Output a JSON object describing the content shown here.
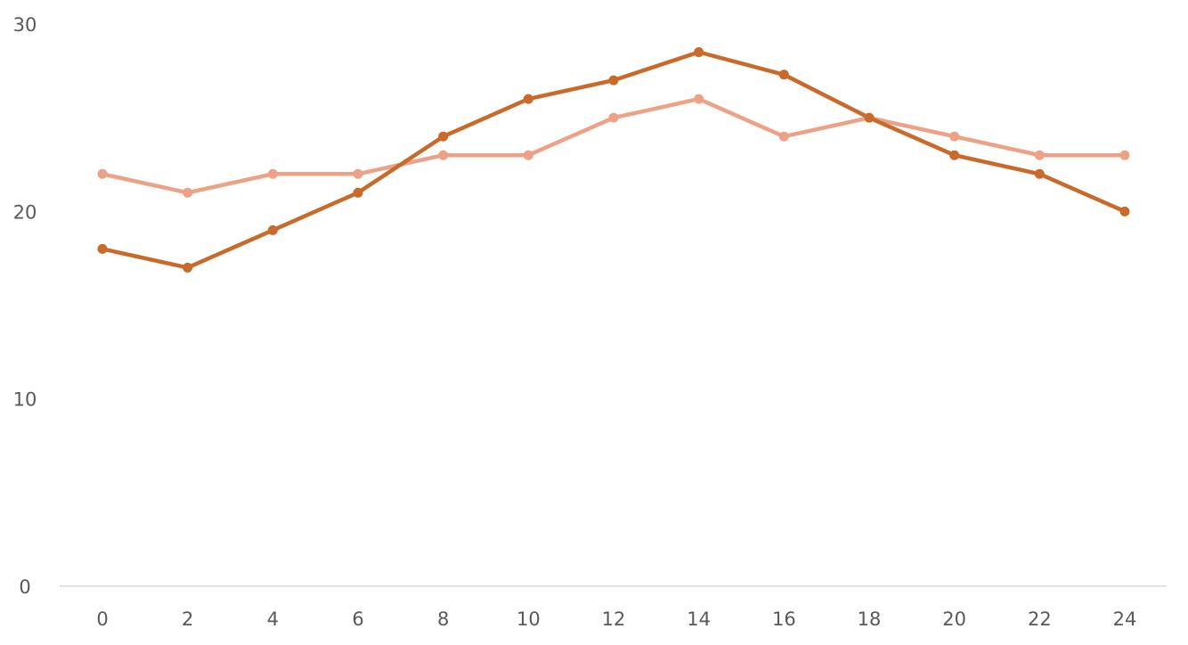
{
  "chart_data": {
    "type": "line",
    "title": "",
    "xlabel": "",
    "ylabel": "",
    "x": [
      0,
      2,
      4,
      6,
      8,
      10,
      12,
      14,
      16,
      18,
      20,
      22,
      24
    ],
    "x_ticks": [
      "0",
      "2",
      "4",
      "6",
      "8",
      "10",
      "12",
      "14",
      "16",
      "18",
      "20",
      "22",
      "24"
    ],
    "y_ticks": [
      "0",
      "10",
      "20",
      "30"
    ],
    "xlim": [
      0,
      24
    ],
    "ylim": [
      0,
      30
    ],
    "grid": false,
    "legend": "none",
    "series": [
      {
        "color": "#C96A2B",
        "values": [
          18,
          17,
          19,
          21,
          24,
          26,
          27,
          28.5,
          27.3,
          25,
          23,
          22,
          20
        ]
      },
      {
        "color": "#EDA287",
        "values": [
          22,
          21,
          22,
          22,
          23,
          23,
          25,
          26,
          24,
          25,
          24,
          23,
          23
        ]
      }
    ]
  }
}
